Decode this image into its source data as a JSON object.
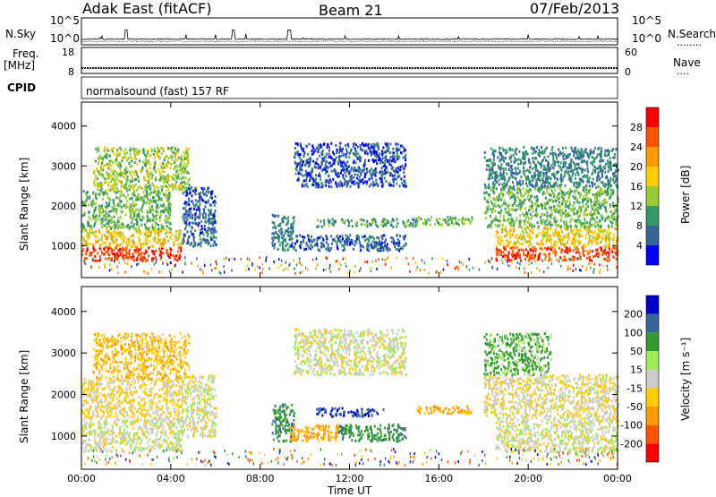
{
  "header": {
    "station": "Adak East (fitACF)",
    "beam": "Beam 21",
    "date": "07/Feb/2013"
  },
  "side_labels": {
    "nsky": "N.Sky",
    "freq": "Freq.",
    "mhz": "[MHz]",
    "cpid": "CPID",
    "nsearch": "N.Search",
    "nave": "Nave",
    "nsearch_dots": "........",
    "nave_dots": "....",
    "exp_1e5": "10^5",
    "exp_1e0": "10^0"
  },
  "cpid_text": "normalsound (fast) 157 RF",
  "axes": {
    "range_label": "Slant Range [km]",
    "time_label": "Time UT",
    "range_ticks": [
      1000,
      2000,
      3000,
      4000
    ],
    "time_ticks": [
      "00:00",
      "04:00",
      "08:00",
      "12:00",
      "16:00",
      "20:00",
      "00:00"
    ],
    "freq_ticks": [
      18,
      8
    ],
    "nave_ticks": [
      60,
      0
    ]
  },
  "colorbars": {
    "power": {
      "label": "Power [dB]",
      "ticks": [
        28,
        24,
        20,
        16,
        12,
        8,
        4
      ],
      "colors": [
        "#ff0000",
        "#ff5500",
        "#ff9900",
        "#ffcc00",
        "#99cc33",
        "#339966",
        "#336699",
        "#0000ff"
      ]
    },
    "velocity": {
      "label": "Velocity [m s⁻¹]",
      "ticks": [
        200,
        100,
        50,
        15,
        -15,
        -50,
        -100,
        -200
      ],
      "colors": [
        "#0000cc",
        "#336699",
        "#339933",
        "#99ee55",
        "#cccccc",
        "#ffcc00",
        "#ff9900",
        "#ff5500",
        "#ff0000"
      ]
    }
  },
  "chart_data": [
    {
      "type": "line",
      "title": "N.Sky / N.Search",
      "scale": "log",
      "ylim": [
        "10^0",
        "10^5"
      ],
      "xlim": [
        "00:00",
        "24:00"
      ],
      "note": "noise series near baseline with occasional spikes"
    },
    {
      "type": "line",
      "title": "Freq. / Nave",
      "ylim_freq": [
        8,
        18
      ],
      "ylim_nave": [
        0,
        60
      ],
      "freq_level": 10,
      "nave_level": 14
    },
    {
      "type": "heatmap",
      "title": "Power [dB]",
      "xlabel": "Time UT",
      "ylabel": "Slant Range [km]",
      "xlim": [
        0,
        24
      ],
      "ylim": [
        200,
        4600
      ],
      "zlim": [
        0,
        32
      ],
      "regions": [
        {
          "t0": 0.0,
          "t1": 4.5,
          "r0": 650,
          "r1": 1000,
          "z": 28
        },
        {
          "t0": 0.0,
          "t1": 4.5,
          "r0": 1000,
          "r1": 1450,
          "z": 18
        },
        {
          "t0": 0.0,
          "t1": 4.0,
          "r0": 1450,
          "r1": 2400,
          "z": 12
        },
        {
          "t0": 0.5,
          "t1": 4.8,
          "r0": 2400,
          "r1": 3500,
          "z": 14
        },
        {
          "t0": 4.5,
          "t1": 6.0,
          "r0": 1000,
          "r1": 2500,
          "z": 6
        },
        {
          "t0": 8.5,
          "t1": 9.5,
          "r0": 900,
          "r1": 1800,
          "z": 8
        },
        {
          "t0": 9.3,
          "t1": 14.5,
          "r0": 900,
          "r1": 1300,
          "z": 6
        },
        {
          "t0": 9.5,
          "t1": 14.5,
          "r0": 2500,
          "r1": 3600,
          "z": 5
        },
        {
          "t0": 10.5,
          "t1": 15.0,
          "r0": 1500,
          "r1": 1700,
          "z": 10
        },
        {
          "t0": 15.0,
          "t1": 17.5,
          "r0": 1550,
          "r1": 1750,
          "z": 12
        },
        {
          "t0": 18.5,
          "t1": 24.0,
          "r0": 650,
          "r1": 1000,
          "z": 27
        },
        {
          "t0": 18.5,
          "t1": 24.0,
          "r0": 1000,
          "r1": 1500,
          "z": 18
        },
        {
          "t0": 18.0,
          "t1": 24.0,
          "r0": 1500,
          "r1": 2500,
          "z": 12
        },
        {
          "t0": 18.0,
          "t1": 24.0,
          "r0": 2500,
          "r1": 3500,
          "z": 8
        }
      ]
    },
    {
      "type": "heatmap",
      "title": "Velocity [m s⁻¹]",
      "xlabel": "Time UT",
      "ylabel": "Slant Range [km]",
      "xlim": [
        0,
        24
      ],
      "ylim": [
        200,
        4600
      ],
      "zlim": [
        -250,
        250
      ],
      "regions": [
        {
          "t0": 0.0,
          "t1": 4.5,
          "r0": 650,
          "r1": 1450,
          "z": 0
        },
        {
          "t0": 0.0,
          "t1": 4.5,
          "r0": 1450,
          "r1": 2400,
          "z": -20
        },
        {
          "t0": 0.5,
          "t1": 4.8,
          "r0": 2400,
          "r1": 3500,
          "z": -40
        },
        {
          "t0": 4.5,
          "t1": 6.0,
          "r0": 1000,
          "r1": 2500,
          "z": 0
        },
        {
          "t0": 8.5,
          "t1": 9.5,
          "r0": 900,
          "r1": 1800,
          "z": 60
        },
        {
          "t0": 9.3,
          "t1": 11.5,
          "r0": 900,
          "r1": 1300,
          "z": -60
        },
        {
          "t0": 11.5,
          "t1": 14.5,
          "r0": 900,
          "r1": 1300,
          "z": 60
        },
        {
          "t0": 10.5,
          "t1": 13.5,
          "r0": 1500,
          "r1": 1700,
          "z": 150
        },
        {
          "t0": 9.5,
          "t1": 14.5,
          "r0": 2500,
          "r1": 3600,
          "z": 0
        },
        {
          "t0": 15.0,
          "t1": 17.5,
          "r0": 1550,
          "r1": 1750,
          "z": -60
        },
        {
          "t0": 18.5,
          "t1": 24.0,
          "r0": 650,
          "r1": 1500,
          "z": 0
        },
        {
          "t0": 18.0,
          "t1": 24.0,
          "r0": 1500,
          "r1": 2500,
          "z": -10
        },
        {
          "t0": 18.0,
          "t1": 21.0,
          "r0": 2500,
          "r1": 3500,
          "z": 40
        }
      ]
    }
  ]
}
